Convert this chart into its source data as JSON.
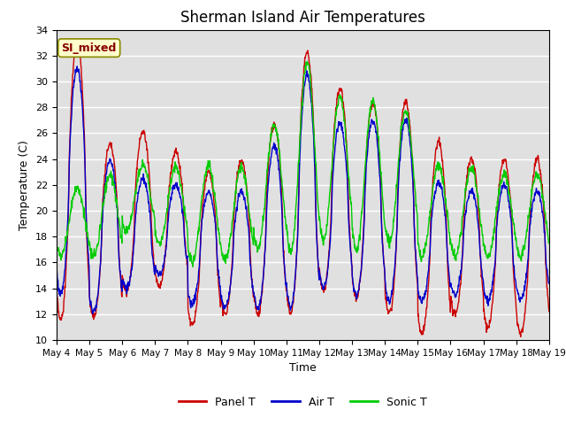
{
  "title": "Sherman Island Air Temperatures",
  "xlabel": "Time",
  "ylabel": "Temperature (C)",
  "ylim": [
    10,
    34
  ],
  "yticks": [
    10,
    12,
    14,
    16,
    18,
    20,
    22,
    24,
    26,
    28,
    30,
    32,
    34
  ],
  "xtick_labels": [
    "May 4",
    "May 5",
    "May 6",
    "May 7",
    "May 8",
    "May 9",
    "May 10",
    "May 11",
    "May 12",
    "May 13",
    "May 14",
    "May 15",
    "May 16",
    "May 17",
    "May 18",
    "May 19"
  ],
  "panel_color": "#cc0000",
  "air_color": "#0000cc",
  "sonic_color": "#00cc00",
  "bg_color": "#e0e0e0",
  "annotation_text": "SI_mixed",
  "annotation_bg": "#ffffcc",
  "annotation_fg": "#880000",
  "legend_labels": [
    "Panel T",
    "Air T",
    "Sonic T"
  ],
  "n_days": 15,
  "points_per_day": 96,
  "figsize": [
    6.4,
    4.8
  ],
  "dpi": 100
}
